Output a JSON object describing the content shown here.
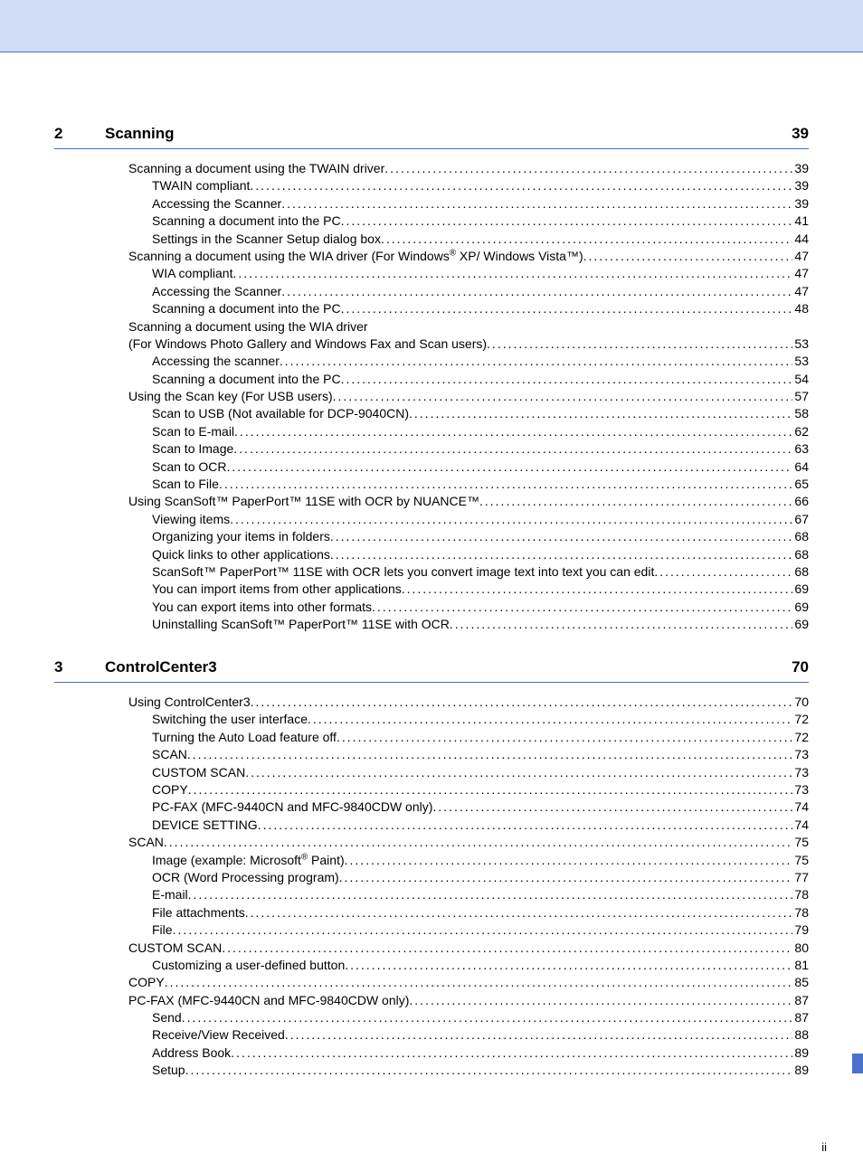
{
  "page_number_label": "ii",
  "colors": {
    "header_band": "#d1ddf7",
    "rule": "#4a6fcf",
    "tab": "#4a6fcf"
  },
  "chapters": [
    {
      "number": "2",
      "title": "Scanning",
      "page": "39",
      "entries": [
        {
          "level": 1,
          "text": "Scanning a document using the TWAIN driver",
          "page": "39"
        },
        {
          "level": 2,
          "text": "TWAIN compliant",
          "page": "39"
        },
        {
          "level": 2,
          "text": "Accessing the Scanner",
          "page": "39"
        },
        {
          "level": 2,
          "text": "Scanning a document into the PC ",
          "page": "41"
        },
        {
          "level": 2,
          "text": "Settings in the Scanner Setup dialog box",
          "page": "44"
        },
        {
          "level": 1,
          "html": "Scanning a document using the WIA driver (For Windows<sup>®</sup> XP/ Windows Vista™) ",
          "page": "47"
        },
        {
          "level": 2,
          "text": "WIA compliant ",
          "page": "47"
        },
        {
          "level": 2,
          "text": "Accessing the Scanner",
          "page": "47"
        },
        {
          "level": 2,
          "text": "Scanning a document into the PC ",
          "page": "48"
        },
        {
          "level": 1,
          "text": "Scanning a document using the WIA driver",
          "noleader": true
        },
        {
          "level": 2,
          "text": "(For Windows Photo Gallery and Windows Fax and Scan users)",
          "page": "53",
          "outdent": true
        },
        {
          "level": 2,
          "text": "Accessing the scanner ",
          "page": "53"
        },
        {
          "level": 2,
          "text": "Scanning a document into the PC ",
          "page": "54"
        },
        {
          "level": 1,
          "text": "Using the Scan key (For USB users)",
          "page": "57"
        },
        {
          "level": 2,
          "text": "Scan to USB (Not available for DCP-9040CN)",
          "page": "58"
        },
        {
          "level": 2,
          "text": "Scan to E-mail ",
          "page": "62"
        },
        {
          "level": 2,
          "text": "Scan to Image ",
          "page": "63"
        },
        {
          "level": 2,
          "text": "Scan to OCR ",
          "page": "64"
        },
        {
          "level": 2,
          "text": "Scan to File",
          "page": "65"
        },
        {
          "level": 1,
          "text": "Using ScanSoft™ PaperPort™ 11SE with OCR by NUANCE™ ",
          "page": "66"
        },
        {
          "level": 2,
          "text": "Viewing items ",
          "page": "67"
        },
        {
          "level": 2,
          "text": "Organizing your items in folders ",
          "page": "68"
        },
        {
          "level": 2,
          "text": "Quick links to other applications ",
          "page": "68"
        },
        {
          "level": 2,
          "text": "ScanSoft™ PaperPort™ 11SE with OCR lets you convert image text into text you can edit",
          "page": "68"
        },
        {
          "level": 2,
          "text": "You can import items from other applications ",
          "page": "69"
        },
        {
          "level": 2,
          "text": "You can export items into other formats",
          "page": "69"
        },
        {
          "level": 2,
          "text": "Uninstalling ScanSoft™ PaperPort™ 11SE with OCR",
          "page": "69"
        }
      ]
    },
    {
      "number": "3",
      "title": "ControlCenter3",
      "page": "70",
      "entries": [
        {
          "level": 1,
          "text": "Using ControlCenter3 ",
          "page": "70"
        },
        {
          "level": 2,
          "text": "Switching the user interface ",
          "page": "72"
        },
        {
          "level": 2,
          "text": "Turning the Auto Load feature off",
          "page": "72"
        },
        {
          "level": 2,
          "text": "SCAN",
          "page": "73"
        },
        {
          "level": 2,
          "text": "CUSTOM SCAN ",
          "page": "73"
        },
        {
          "level": 2,
          "text": "COPY ",
          "page": "73"
        },
        {
          "level": 2,
          "text": "PC-FAX (MFC-9440CN and MFC-9840CDW only)",
          "page": "74"
        },
        {
          "level": 2,
          "text": "DEVICE SETTING",
          "page": "74"
        },
        {
          "level": 1,
          "text": "SCAN",
          "page": "75"
        },
        {
          "level": 2,
          "html": "Image (example: Microsoft<sup>®</sup> Paint)",
          "page": "75"
        },
        {
          "level": 2,
          "text": "OCR (Word Processing program) ",
          "page": "77"
        },
        {
          "level": 2,
          "text": "E-mail ",
          "page": "78"
        },
        {
          "level": 2,
          "text": "File attachments ",
          "page": "78"
        },
        {
          "level": 2,
          "text": "File",
          "page": "79"
        },
        {
          "level": 1,
          "text": "CUSTOM SCAN ",
          "page": "80"
        },
        {
          "level": 2,
          "text": "Customizing a user-defined button",
          "page": "81"
        },
        {
          "level": 1,
          "text": "COPY ",
          "page": "85"
        },
        {
          "level": 1,
          "text": "PC-FAX (MFC-9440CN and MFC-9840CDW only)",
          "page": "87"
        },
        {
          "level": 2,
          "text": "Send ",
          "page": "87"
        },
        {
          "level": 2,
          "text": "Receive/View Received",
          "page": "88"
        },
        {
          "level": 2,
          "text": "Address Book ",
          "page": "89"
        },
        {
          "level": 2,
          "text": "Setup ",
          "page": "89"
        }
      ]
    }
  ]
}
